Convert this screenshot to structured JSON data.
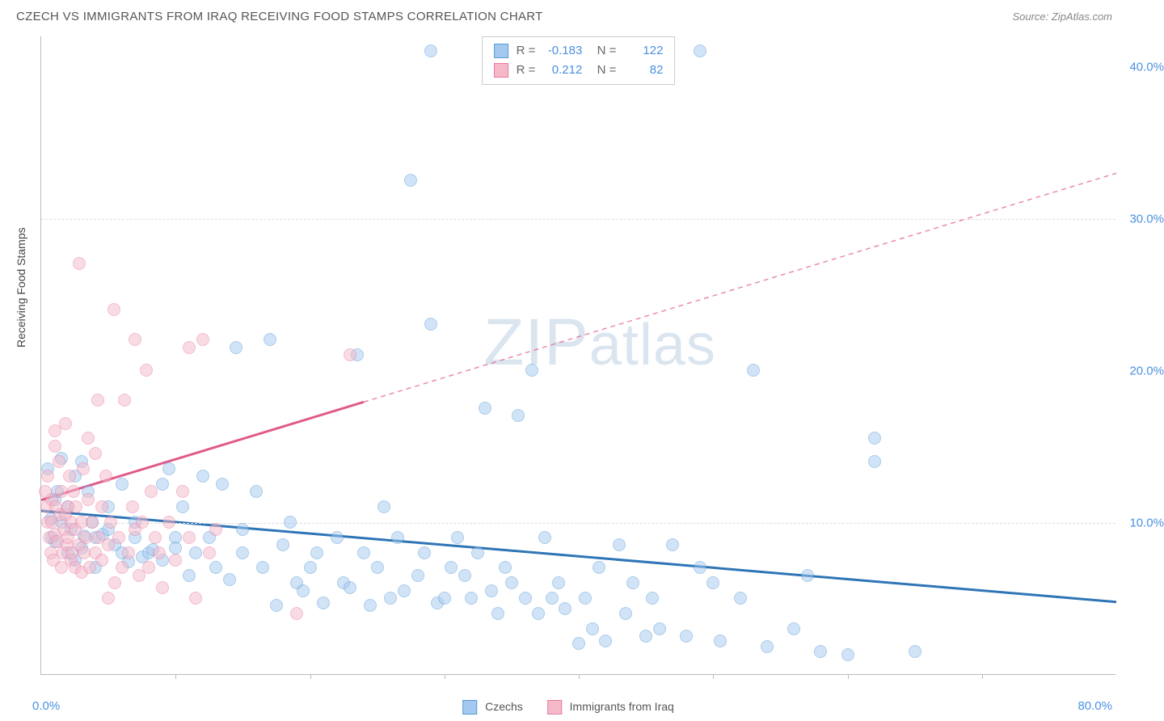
{
  "header": {
    "title": "CZECH VS IMMIGRANTS FROM IRAQ RECEIVING FOOD STAMPS CORRELATION CHART",
    "source": "Source: ZipAtlas.com"
  },
  "chart": {
    "type": "scatter",
    "ylabel": "Receiving Food Stamps",
    "xlim": [
      0,
      80
    ],
    "ylim": [
      0,
      42
    ],
    "x_tick_positions": [
      10,
      20,
      30,
      40,
      50,
      60,
      70
    ],
    "y_gridlines": [
      10,
      30
    ],
    "y_tick_labels": [
      {
        "v": 10,
        "label": "10.0%"
      },
      {
        "v": 20,
        "label": "20.0%"
      },
      {
        "v": 30,
        "label": "30.0%"
      },
      {
        "v": 40,
        "label": "40.0%"
      }
    ],
    "x_min_label": "0.0%",
    "x_max_label": "80.0%",
    "background_color": "#ffffff",
    "grid_color": "#dddddd",
    "axis_color": "#bbbbbb",
    "axis_value_color": "#4a90e2",
    "point_radius": 8,
    "point_opacity": 0.5,
    "watermark": "ZIPatlas",
    "series": [
      {
        "name": "Czechs",
        "label": "Czechs",
        "fill_color": "#a3c9f1",
        "stroke_color": "#5b9bd5",
        "line_color": "#2e75b6",
        "R": "-0.183",
        "N": "122",
        "regression": {
          "x1": 0,
          "y1": 10.8,
          "x2": 80,
          "y2": 4.8,
          "dashed_from": 80
        },
        "points": [
          [
            0.5,
            13.5
          ],
          [
            0.7,
            10.2
          ],
          [
            0.8,
            9.0
          ],
          [
            1,
            11.5
          ],
          [
            1,
            8.7
          ],
          [
            1.2,
            12.0
          ],
          [
            1.5,
            14.2
          ],
          [
            1.5,
            10.0
          ],
          [
            2,
            11.0
          ],
          [
            2,
            8.0
          ],
          [
            2.2,
            9.5
          ],
          [
            2.5,
            13.0
          ],
          [
            2.5,
            7.5
          ],
          [
            3,
            14.0
          ],
          [
            3,
            8.3
          ],
          [
            3.2,
            9.1
          ],
          [
            3.5,
            12.0
          ],
          [
            3.8,
            10.0
          ],
          [
            4,
            7.0
          ],
          [
            4,
            9.0
          ],
          [
            4.6,
            9.2
          ],
          [
            5,
            9.5
          ],
          [
            5,
            11.0
          ],
          [
            5.5,
            8.5
          ],
          [
            6,
            8.0
          ],
          [
            6,
            12.5
          ],
          [
            6.5,
            7.4
          ],
          [
            7,
            9.0
          ],
          [
            7,
            10.0
          ],
          [
            7.5,
            7.7
          ],
          [
            8,
            8.0
          ],
          [
            8.3,
            8.2
          ],
          [
            9,
            7.5
          ],
          [
            9,
            12.5
          ],
          [
            9.5,
            13.5
          ],
          [
            10,
            9.0
          ],
          [
            10,
            8.3
          ],
          [
            10.5,
            11.0
          ],
          [
            11,
            6.5
          ],
          [
            11.5,
            8.0
          ],
          [
            12,
            13.0
          ],
          [
            12.5,
            9.0
          ],
          [
            13,
            7.0
          ],
          [
            13.5,
            12.5
          ],
          [
            14,
            6.2
          ],
          [
            14.5,
            21.5
          ],
          [
            15,
            8.0
          ],
          [
            15,
            9.5
          ],
          [
            16,
            12.0
          ],
          [
            16.5,
            7.0
          ],
          [
            17,
            22.0
          ],
          [
            17.5,
            4.5
          ],
          [
            18,
            8.5
          ],
          [
            18.5,
            10.0
          ],
          [
            19,
            6.0
          ],
          [
            19.5,
            5.5
          ],
          [
            20,
            7.0
          ],
          [
            20.5,
            8.0
          ],
          [
            21,
            4.7
          ],
          [
            22,
            9.0
          ],
          [
            22.5,
            6.0
          ],
          [
            23,
            5.7
          ],
          [
            23.5,
            21.0
          ],
          [
            24,
            8.0
          ],
          [
            24.5,
            4.5
          ],
          [
            25,
            7.0
          ],
          [
            25.5,
            11.0
          ],
          [
            26,
            5.0
          ],
          [
            26.5,
            9.0
          ],
          [
            27,
            5.5
          ],
          [
            27.5,
            32.5
          ],
          [
            28,
            6.5
          ],
          [
            28.5,
            8.0
          ],
          [
            29,
            41.0
          ],
          [
            29,
            23.0
          ],
          [
            29.5,
            4.7
          ],
          [
            30,
            5.0
          ],
          [
            30.5,
            7.0
          ],
          [
            31,
            9.0
          ],
          [
            31.5,
            6.5
          ],
          [
            32,
            5.0
          ],
          [
            32.5,
            8.0
          ],
          [
            33,
            17.5
          ],
          [
            33.5,
            5.5
          ],
          [
            34,
            4.0
          ],
          [
            34.5,
            7.0
          ],
          [
            35,
            6.0
          ],
          [
            35.5,
            17.0
          ],
          [
            36,
            5.0
          ],
          [
            36.5,
            20.0
          ],
          [
            37,
            4.0
          ],
          [
            37.5,
            9.0
          ],
          [
            38,
            5.0
          ],
          [
            38.5,
            6.0
          ],
          [
            39,
            4.3
          ],
          [
            40,
            2.0
          ],
          [
            40.5,
            5.0
          ],
          [
            41,
            3.0
          ],
          [
            41.5,
            7.0
          ],
          [
            42,
            2.2
          ],
          [
            43,
            8.5
          ],
          [
            43.5,
            4.0
          ],
          [
            44,
            6.0
          ],
          [
            45,
            2.5
          ],
          [
            45.5,
            5.0
          ],
          [
            46,
            3.0
          ],
          [
            47,
            8.5
          ],
          [
            48,
            2.5
          ],
          [
            49,
            7.0
          ],
          [
            49,
            41.0
          ],
          [
            50,
            6.0
          ],
          [
            50.5,
            2.2
          ],
          [
            52,
            5.0
          ],
          [
            53,
            20.0
          ],
          [
            54,
            1.8
          ],
          [
            56,
            3.0
          ],
          [
            57,
            6.5
          ],
          [
            58,
            1.5
          ],
          [
            60,
            1.3
          ],
          [
            62,
            15.5
          ],
          [
            62,
            14.0
          ],
          [
            65,
            1.5
          ]
        ]
      },
      {
        "name": "Immigrants from Iraq",
        "label": "Immigrants from Iraq",
        "fill_color": "#f5b8c8",
        "stroke_color": "#e87ca0",
        "line_color": "#e05a8a",
        "R": "0.212",
        "N": "82",
        "regression": {
          "x1": 0,
          "y1": 11.5,
          "x2": 24,
          "y2": 18.0,
          "dashed_from": 24,
          "x3": 80,
          "y3": 33.0
        },
        "points": [
          [
            0.3,
            12.0
          ],
          [
            0.4,
            11.0
          ],
          [
            0.5,
            10.0
          ],
          [
            0.5,
            13.0
          ],
          [
            0.6,
            9.0
          ],
          [
            0.7,
            8.0
          ],
          [
            0.8,
            11.5
          ],
          [
            0.8,
            10.0
          ],
          [
            0.9,
            7.5
          ],
          [
            1,
            15.0
          ],
          [
            1,
            16.0
          ],
          [
            1,
            9.2
          ],
          [
            1.1,
            11.0
          ],
          [
            1.2,
            8.7
          ],
          [
            1.3,
            14.0
          ],
          [
            1.4,
            10.5
          ],
          [
            1.5,
            7.0
          ],
          [
            1.5,
            12.0
          ],
          [
            1.6,
            8.0
          ],
          [
            1.7,
            9.5
          ],
          [
            1.8,
            10.5
          ],
          [
            1.8,
            16.5
          ],
          [
            1.9,
            8.5
          ],
          [
            2,
            11.0
          ],
          [
            2,
            9.0
          ],
          [
            2.1,
            13.0
          ],
          [
            2.2,
            7.5
          ],
          [
            2.2,
            10.0
          ],
          [
            2.3,
            8.0
          ],
          [
            2.4,
            12.0
          ],
          [
            2.5,
            9.5
          ],
          [
            2.5,
            7.0
          ],
          [
            2.6,
            11.0
          ],
          [
            2.8,
            8.5
          ],
          [
            2.8,
            27.0
          ],
          [
            3,
            6.7
          ],
          [
            3,
            10.0
          ],
          [
            3.1,
            13.5
          ],
          [
            3.2,
            8.0
          ],
          [
            3.3,
            9.0
          ],
          [
            3.5,
            11.5
          ],
          [
            3.5,
            15.5
          ],
          [
            3.6,
            7.0
          ],
          [
            3.8,
            10.0
          ],
          [
            4,
            8.0
          ],
          [
            4,
            14.5
          ],
          [
            4.2,
            18.0
          ],
          [
            4.3,
            9.0
          ],
          [
            4.5,
            7.5
          ],
          [
            4.5,
            11.0
          ],
          [
            4.8,
            13.0
          ],
          [
            5,
            5.0
          ],
          [
            5,
            8.5
          ],
          [
            5.2,
            10.0
          ],
          [
            5.4,
            24.0
          ],
          [
            5.5,
            6.0
          ],
          [
            5.8,
            9.0
          ],
          [
            6,
            7.0
          ],
          [
            6.2,
            18.0
          ],
          [
            6.5,
            8.0
          ],
          [
            6.8,
            11.0
          ],
          [
            7,
            22.0
          ],
          [
            7,
            9.5
          ],
          [
            7.3,
            6.5
          ],
          [
            7.5,
            10.0
          ],
          [
            7.8,
            20.0
          ],
          [
            8,
            7.0
          ],
          [
            8.2,
            12.0
          ],
          [
            8.5,
            9.0
          ],
          [
            8.8,
            8.0
          ],
          [
            9,
            5.7
          ],
          [
            9.5,
            10.0
          ],
          [
            10,
            7.5
          ],
          [
            10.5,
            12.0
          ],
          [
            11,
            21.5
          ],
          [
            11,
            9.0
          ],
          [
            11.5,
            5.0
          ],
          [
            12,
            22.0
          ],
          [
            12.5,
            8.0
          ],
          [
            13,
            9.5
          ],
          [
            19,
            4.0
          ],
          [
            23,
            21.0
          ]
        ]
      }
    ],
    "legend_bottom": [
      {
        "swatch_fill": "#a3c9f1",
        "swatch_stroke": "#5b9bd5",
        "label": "Czechs"
      },
      {
        "swatch_fill": "#f5b8c8",
        "swatch_stroke": "#e87ca0",
        "label": "Immigrants from Iraq"
      }
    ]
  }
}
